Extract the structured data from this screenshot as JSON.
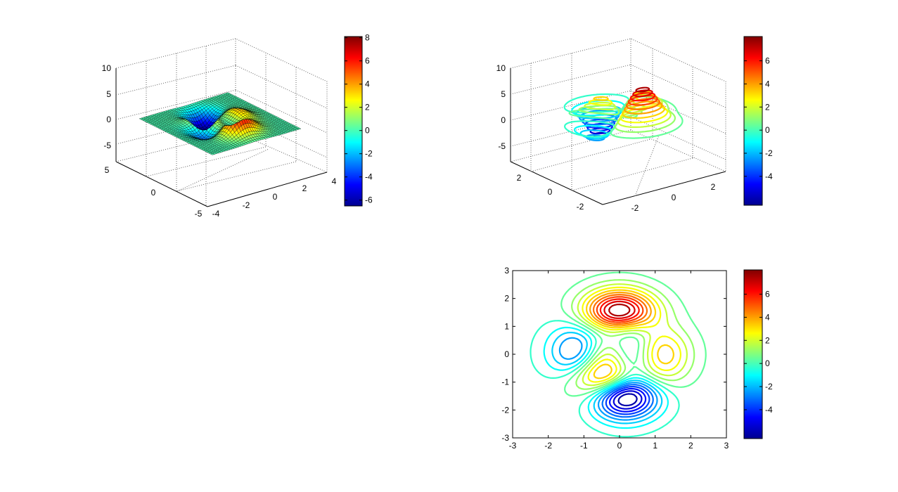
{
  "figure": {
    "background": "#ffffff"
  },
  "colormap": "jet",
  "chart_data": [
    {
      "id": "surface-plot",
      "type": "surface",
      "function": "peaks",
      "xlim": [
        -4,
        4
      ],
      "ylim": [
        -5,
        5
      ],
      "zlim": [
        -10,
        10
      ],
      "x_ticks": [
        "-4",
        "-2",
        "0",
        "2",
        "4"
      ],
      "y_ticks": [
        "-5",
        "0",
        "5"
      ],
      "z_ticks": [
        "10",
        "5",
        "0",
        "-5"
      ],
      "colorbar": {
        "ticks": [
          "8",
          "6",
          "4",
          "2",
          "0",
          "-2",
          "-4",
          "-6"
        ],
        "range": [
          -6.5,
          8.1
        ]
      },
      "grid": true
    },
    {
      "id": "contour3-plot",
      "type": "contour3",
      "function": "peaks",
      "xlim": [
        -3,
        3
      ],
      "ylim": [
        -3,
        3
      ],
      "zlim": [
        -8,
        10
      ],
      "x_ticks": [
        "-2",
        "0",
        "2"
      ],
      "y_ticks": [
        "2",
        "0",
        "-2"
      ],
      "z_ticks": [
        "10",
        "5",
        "0",
        "-5"
      ],
      "colorbar": {
        "ticks": [
          "6",
          "4",
          "2",
          "0",
          "-2",
          "-4"
        ],
        "range": [
          -6.5,
          8.1
        ]
      },
      "grid": true
    },
    {
      "id": "contour-plot",
      "type": "contour",
      "function": "peaks",
      "xlim": [
        -3,
        3
      ],
      "ylim": [
        -3,
        3
      ],
      "x_ticks": [
        "-3",
        "-2",
        "-1",
        "0",
        "1",
        "2",
        "3"
      ],
      "y_ticks": [
        "3",
        "2",
        "1",
        "0",
        "-1",
        "-2",
        "-3"
      ],
      "colorbar": {
        "ticks": [
          "6",
          "4",
          "2",
          "0",
          "-2",
          "-4"
        ],
        "range": [
          -6.5,
          8.1
        ]
      },
      "levels": 20
    }
  ]
}
